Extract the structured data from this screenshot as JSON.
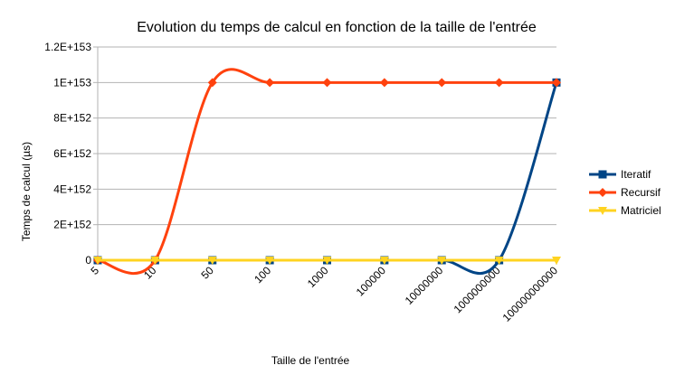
{
  "chart_data": {
    "type": "line",
    "title": "Evolution du temps de calcul en fonction de la taille de l'entrée",
    "xlabel": "Taille de l'entrée",
    "ylabel": "Temps de calcul (µs)",
    "categories": [
      "5",
      "10",
      "50",
      "100",
      "1000",
      "100000",
      "10000000",
      "1000000000",
      "100000000000"
    ],
    "ylim": [
      0,
      1.2e+153
    ],
    "yticks": [
      {
        "value": 0,
        "label": "0"
      },
      {
        "value": 2e+152,
        "label": "2E+152"
      },
      {
        "value": 4e+152,
        "label": "4E+152"
      },
      {
        "value": 6e+152,
        "label": "6E+152"
      },
      {
        "value": 8e+152,
        "label": "8E+152"
      },
      {
        "value": 1e+153,
        "label": "1E+153"
      },
      {
        "value": 1.2e+153,
        "label": "1.2E+153"
      }
    ],
    "grid": true,
    "legend_position": "right",
    "smoothed": true,
    "series": [
      {
        "name": "Iteratif",
        "color": "#004586",
        "marker": "square",
        "values": [
          0,
          0,
          0,
          0,
          0,
          0,
          0,
          0,
          1e+153
        ]
      },
      {
        "name": "Recursif",
        "color": "#ff420e",
        "marker": "diamond",
        "values": [
          0,
          0,
          1e+153,
          1e+153,
          1e+153,
          1e+153,
          1e+153,
          1e+153,
          1e+153
        ]
      },
      {
        "name": "Matriciel",
        "color": "#ffd320",
        "marker": "triangle-down",
        "values": [
          0,
          0,
          0,
          0,
          0,
          0,
          0,
          0,
          0
        ]
      }
    ]
  }
}
